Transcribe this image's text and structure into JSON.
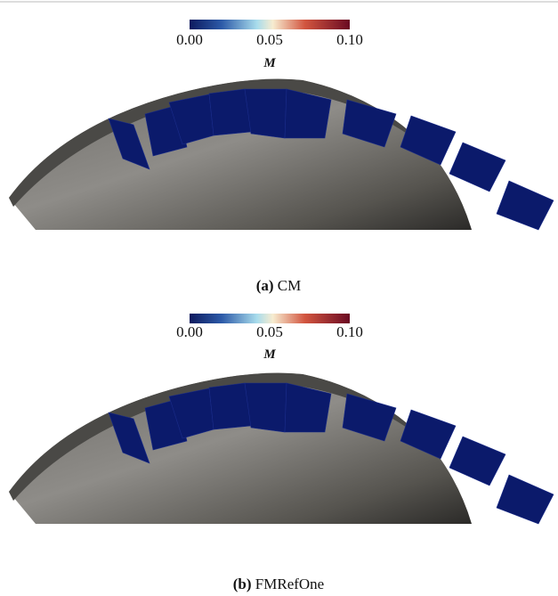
{
  "panels": [
    {
      "colorbar": {
        "ticks": [
          "0.00",
          "0.05",
          "0.10"
        ],
        "label": "M"
      },
      "caption": {
        "tag": "(a)",
        "name": "CM"
      }
    },
    {
      "colorbar": {
        "ticks": [
          "0.00",
          "0.05",
          "0.10"
        ],
        "label": "M"
      },
      "caption": {
        "tag": "(b)",
        "name": "FMRefOne"
      }
    }
  ]
}
